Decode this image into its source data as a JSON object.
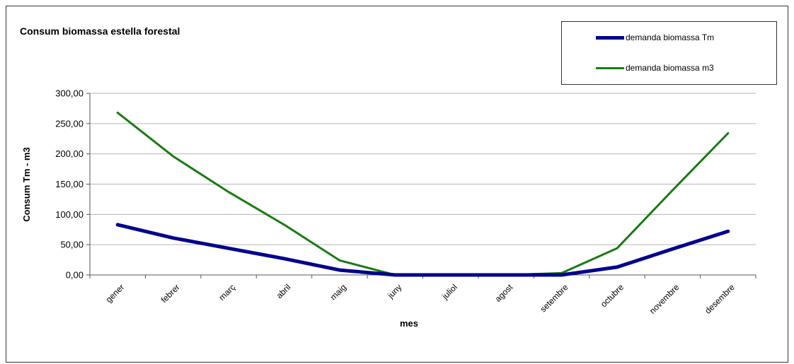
{
  "chart_data": {
    "type": "line",
    "title": "Consum biomassa estella forestal",
    "xlabel": "mes",
    "ylabel": "Consum Tm - m3",
    "categories": [
      "gener",
      "febrer",
      "març",
      "abril",
      "maig",
      "juny",
      "juliol",
      "agost",
      "setembre",
      "octubre",
      "novembre",
      "desembre"
    ],
    "y_tick_labels": [
      "0,00",
      "50,00",
      "100,00",
      "150,00",
      "200,00",
      "250,00",
      "300,00"
    ],
    "ylim": [
      0,
      300
    ],
    "grid": true,
    "legend_position": "top-right",
    "series": [
      {
        "name": "demanda biomassa Tm",
        "color": "#00008B",
        "values": [
          83,
          61,
          44,
          27,
          8,
          0,
          0,
          0,
          0,
          13,
          43,
          72
        ]
      },
      {
        "name": "demanda biomassa m3",
        "color": "#1A7A14",
        "values": [
          268,
          196,
          137,
          83,
          24,
          0,
          0,
          0,
          3,
          44,
          140,
          234
        ]
      }
    ]
  }
}
